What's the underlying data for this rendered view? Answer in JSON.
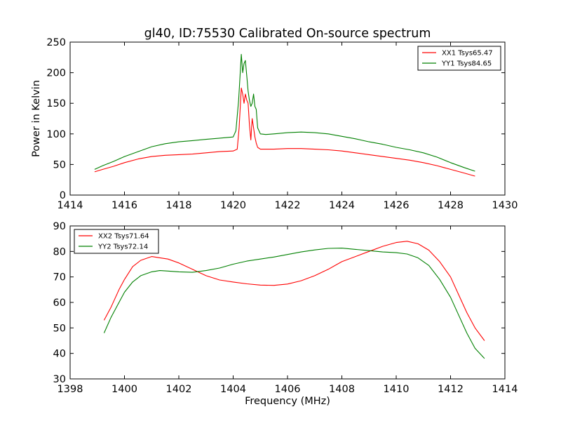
{
  "chart_data": [
    {
      "type": "line",
      "title": "gl40, ID:75530 Calibrated On-source spectrum",
      "xlabel": "",
      "ylabel": "Power in Kelvin",
      "xlim": [
        1414,
        1430
      ],
      "ylim": [
        0,
        250
      ],
      "xticks": [
        1414,
        1416,
        1418,
        1420,
        1422,
        1424,
        1426,
        1428,
        1430
      ],
      "yticks": [
        0,
        50,
        100,
        150,
        200,
        250
      ],
      "grid": false,
      "legend": "top-right",
      "series": [
        {
          "name": "XX1 Tsys65.47",
          "color": "#ff0000",
          "x": [
            1414.9,
            1415.2,
            1415.6,
            1416.0,
            1416.5,
            1417.0,
            1417.5,
            1418.0,
            1418.5,
            1419.0,
            1419.5,
            1420.0,
            1420.15,
            1420.22,
            1420.3,
            1420.35,
            1420.4,
            1420.45,
            1420.5,
            1420.55,
            1420.6,
            1420.65,
            1420.7,
            1420.75,
            1420.8,
            1420.85,
            1420.9,
            1421.0,
            1421.2,
            1421.5,
            1422.0,
            1422.5,
            1423.0,
            1423.5,
            1424.0,
            1424.5,
            1425.0,
            1425.5,
            1426.0,
            1426.5,
            1427.0,
            1427.5,
            1428.0,
            1428.5,
            1428.9
          ],
          "y": [
            38,
            42,
            47,
            53,
            59,
            63,
            65,
            66,
            67,
            69,
            71,
            72,
            75,
            110,
            175,
            165,
            150,
            165,
            155,
            150,
            115,
            90,
            125,
            110,
            95,
            85,
            78,
            75,
            75,
            75,
            76,
            76,
            75,
            74,
            72,
            69,
            66,
            63,
            60,
            57,
            53,
            48,
            42,
            36,
            31
          ]
        },
        {
          "name": "YY1 Tsys84.65",
          "color": "#008000",
          "x": [
            1414.9,
            1415.2,
            1415.6,
            1416.0,
            1416.5,
            1417.0,
            1417.5,
            1418.0,
            1418.5,
            1419.0,
            1419.5,
            1420.0,
            1420.1,
            1420.2,
            1420.3,
            1420.35,
            1420.4,
            1420.45,
            1420.5,
            1420.55,
            1420.6,
            1420.65,
            1420.7,
            1420.75,
            1420.8,
            1420.85,
            1420.9,
            1421.0,
            1421.2,
            1421.5,
            1422.0,
            1422.5,
            1423.0,
            1423.5,
            1424.0,
            1424.5,
            1425.0,
            1425.5,
            1426.0,
            1426.5,
            1427.0,
            1427.5,
            1428.0,
            1428.5,
            1428.9
          ],
          "y": [
            42,
            48,
            55,
            63,
            71,
            79,
            84,
            87,
            89,
            91,
            93,
            95,
            105,
            155,
            230,
            200,
            215,
            220,
            195,
            170,
            155,
            145,
            150,
            165,
            145,
            140,
            110,
            100,
            99,
            100,
            102,
            103,
            102,
            100,
            96,
            92,
            87,
            83,
            78,
            74,
            69,
            62,
            53,
            45,
            39
          ]
        }
      ]
    },
    {
      "type": "line",
      "title": "",
      "xlabel": "Frequency (MHz)",
      "ylabel": "",
      "xlim": [
        1398,
        1414
      ],
      "ylim": [
        30,
        90
      ],
      "xticks": [
        1398,
        1400,
        1402,
        1404,
        1406,
        1408,
        1410,
        1412,
        1414
      ],
      "yticks": [
        30,
        40,
        50,
        60,
        70,
        80,
        90
      ],
      "grid": false,
      "legend": "top-left",
      "series": [
        {
          "name": "XX2 Tsys71.64",
          "color": "#ff0000",
          "x": [
            1399.25,
            1399.5,
            1399.8,
            1400.0,
            1400.3,
            1400.6,
            1401.0,
            1401.3,
            1401.6,
            1402.0,
            1402.5,
            1403.0,
            1403.5,
            1404.0,
            1404.5,
            1405.0,
            1405.5,
            1406.0,
            1406.5,
            1407.0,
            1407.5,
            1408.0,
            1408.5,
            1409.0,
            1409.5,
            1410.0,
            1410.4,
            1410.8,
            1411.2,
            1411.6,
            1412.0,
            1412.3,
            1412.6,
            1412.9,
            1413.25
          ],
          "y": [
            53,
            58,
            65,
            69,
            74,
            76.5,
            78,
            77.5,
            77,
            75.5,
            73,
            70.5,
            68.8,
            68,
            67.3,
            66.8,
            66.7,
            67.2,
            68.5,
            70.5,
            73,
            76,
            78,
            80,
            82,
            83.5,
            84,
            83,
            80.5,
            76,
            70,
            63,
            56,
            50,
            45
          ]
        },
        {
          "name": "YY2 Tsys72.14",
          "color": "#008000",
          "x": [
            1399.25,
            1399.5,
            1399.8,
            1400.0,
            1400.3,
            1400.6,
            1401.0,
            1401.3,
            1401.6,
            1402.0,
            1402.5,
            1403.0,
            1403.5,
            1404.0,
            1404.5,
            1405.0,
            1405.5,
            1406.0,
            1406.5,
            1407.0,
            1407.5,
            1408.0,
            1408.5,
            1409.0,
            1409.5,
            1410.0,
            1410.4,
            1410.8,
            1411.2,
            1411.6,
            1412.0,
            1412.3,
            1412.6,
            1412.9,
            1413.25
          ],
          "y": [
            48,
            54,
            60,
            64,
            68,
            70.5,
            72,
            72.5,
            72.3,
            72,
            71.8,
            72.5,
            73.5,
            75,
            76.2,
            77,
            77.8,
            78.8,
            79.8,
            80.6,
            81.2,
            81.3,
            80.8,
            80.3,
            79.8,
            79.5,
            79,
            77.5,
            74.5,
            69,
            62,
            55,
            48,
            42,
            38
          ]
        }
      ]
    }
  ]
}
